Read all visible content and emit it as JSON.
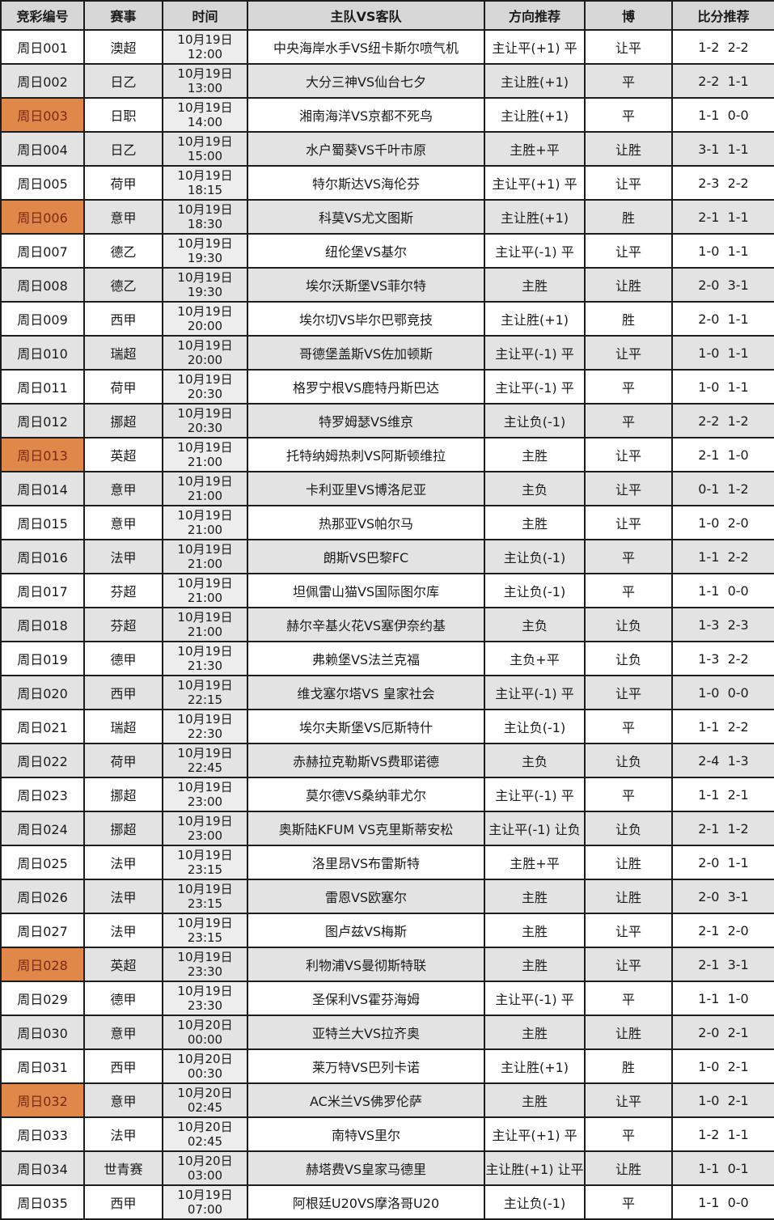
{
  "colors": {
    "highlight_bg": "#e0884a",
    "highlight_text": "#7b2812",
    "header_bg": "#d7d7d7",
    "row_alt_bg": "#e3e3e3",
    "border": "#1c1c1c"
  },
  "table": {
    "headers": [
      "竞彩编号",
      "赛事",
      "时间",
      "主队VS客队",
      "方向推荐",
      "博",
      "比分推荐"
    ],
    "rows": [
      {
        "id": "周日001",
        "league": "澳超",
        "date": "10月19日",
        "time": "12:00",
        "match": "中央海岸水手VS纽卡斯尔喷气机",
        "direction": "主让平(+1) 平",
        "bet": "让平",
        "score": "1-2  2-2",
        "highlight": false
      },
      {
        "id": "周日002",
        "league": "日乙",
        "date": "10月19日",
        "time": "13:00",
        "match": "大分三神VS仙台七夕",
        "direction": "主让胜(+1)",
        "bet": "平",
        "score": "2-2  1-1",
        "highlight": false
      },
      {
        "id": "周日003",
        "league": "日职",
        "date": "10月19日",
        "time": "14:00",
        "match": "湘南海洋VS京都不死鸟",
        "direction": "主让胜(+1)",
        "bet": "平",
        "score": "1-1  0-0",
        "highlight": true
      },
      {
        "id": "周日004",
        "league": "日乙",
        "date": "10月19日",
        "time": "15:00",
        "match": "水户蜀葵VS千叶市原",
        "direction": "主胜+平",
        "bet": "让胜",
        "score": "3-1  1-1",
        "highlight": false
      },
      {
        "id": "周日005",
        "league": "荷甲",
        "date": "10月19日",
        "time": "18:15",
        "match": "特尔斯达VS海伦芬",
        "direction": "主让平(+1) 平",
        "bet": "让平",
        "score": "2-3  2-2",
        "highlight": false
      },
      {
        "id": "周日006",
        "league": "意甲",
        "date": "10月19日",
        "time": "18:30",
        "match": "科莫VS尤文图斯",
        "direction": "主让胜(+1)",
        "bet": "胜",
        "score": "2-1  1-1",
        "highlight": true
      },
      {
        "id": "周日007",
        "league": "德乙",
        "date": "10月19日",
        "time": "19:30",
        "match": "纽伦堡VS基尔",
        "direction": "主让平(-1) 平",
        "bet": "让平",
        "score": "1-0  1-1",
        "highlight": false
      },
      {
        "id": "周日008",
        "league": "德乙",
        "date": "10月19日",
        "time": "19:30",
        "match": "埃尔沃斯堡VS菲尔特",
        "direction": "主胜",
        "bet": "让胜",
        "score": "2-0  3-1",
        "highlight": false
      },
      {
        "id": "周日009",
        "league": "西甲",
        "date": "10月19日",
        "time": "20:00",
        "match": "埃尔切VS毕尔巴鄂竞技",
        "direction": "主让胜(+1)",
        "bet": "胜",
        "score": "2-0  1-1",
        "highlight": false
      },
      {
        "id": "周日010",
        "league": "瑞超",
        "date": "10月19日",
        "time": "20:00",
        "match": "哥德堡盖斯VS佐加顿斯",
        "direction": "主让平(-1) 平",
        "bet": "让平",
        "score": "1-0  1-1",
        "highlight": false
      },
      {
        "id": "周日011",
        "league": "荷甲",
        "date": "10月19日",
        "time": "20:30",
        "match": "格罗宁根VS鹿特丹斯巴达",
        "direction": "主让平(-1) 平",
        "bet": "平",
        "score": "1-0  1-1",
        "highlight": false
      },
      {
        "id": "周日012",
        "league": "挪超",
        "date": "10月19日",
        "time": "20:30",
        "match": "特罗姆瑟VS维京",
        "direction": "主让负(-1)",
        "bet": "平",
        "score": "2-2  1-2",
        "highlight": false
      },
      {
        "id": "周日013",
        "league": "英超",
        "date": "10月19日",
        "time": "21:00",
        "match": "托特纳姆热刺VS阿斯顿维拉",
        "direction": "主胜",
        "bet": "让平",
        "score": "2-1  1-0",
        "highlight": true
      },
      {
        "id": "周日014",
        "league": "意甲",
        "date": "10月19日",
        "time": "21:00",
        "match": "卡利亚里VS博洛尼亚",
        "direction": "主负",
        "bet": "让平",
        "score": "0-1  1-2",
        "highlight": false
      },
      {
        "id": "周日015",
        "league": "意甲",
        "date": "10月19日",
        "time": "21:00",
        "match": "热那亚VS帕尔马",
        "direction": "主胜",
        "bet": "让平",
        "score": "1-0  2-0",
        "highlight": false
      },
      {
        "id": "周日016",
        "league": "法甲",
        "date": "10月19日",
        "time": "21:00",
        "match": "朗斯VS巴黎FC",
        "direction": "主让负(-1)",
        "bet": "平",
        "score": "1-1  2-2",
        "highlight": false
      },
      {
        "id": "周日017",
        "league": "芬超",
        "date": "10月19日",
        "time": "21:00",
        "match": "坦佩雷山猫VS国际图尔库",
        "direction": "主让负(-1)",
        "bet": "平",
        "score": "1-1  0-0",
        "highlight": false
      },
      {
        "id": "周日018",
        "league": "芬超",
        "date": "10月19日",
        "time": "21:00",
        "match": "赫尔辛基火花VS塞伊奈约基",
        "direction": "主负",
        "bet": "让负",
        "score": "1-3  2-3",
        "highlight": false
      },
      {
        "id": "周日019",
        "league": "德甲",
        "date": "10月19日",
        "time": "21:30",
        "match": "弗赖堡VS法兰克福",
        "direction": "主负+平",
        "bet": "让负",
        "score": "1-3  2-2",
        "highlight": false
      },
      {
        "id": "周日020",
        "league": "西甲",
        "date": "10月19日",
        "time": "22:15",
        "match": "维戈塞尔塔VS 皇家社会",
        "direction": "主让平(-1) 平",
        "bet": "让平",
        "score": "1-0  0-0",
        "highlight": false
      },
      {
        "id": "周日021",
        "league": "瑞超",
        "date": "10月19日",
        "time": "22:30",
        "match": "埃尔夫斯堡VS厄斯特什",
        "direction": "主让负(-1)",
        "bet": "平",
        "score": "1-1  2-2",
        "highlight": false
      },
      {
        "id": "周日022",
        "league": "荷甲",
        "date": "10月19日",
        "time": "22:45",
        "match": "赤赫拉克勒斯VS费耶诺德",
        "direction": "主负",
        "bet": "让负",
        "score": "2-4  1-3",
        "highlight": false
      },
      {
        "id": "周日023",
        "league": "挪超",
        "date": "10月19日",
        "time": "23:00",
        "match": "莫尔德VS桑纳菲尤尔",
        "direction": "主让平(-1) 平",
        "bet": "平",
        "score": "1-1  2-1",
        "highlight": false
      },
      {
        "id": "周日024",
        "league": "挪超",
        "date": "10月19日",
        "time": "23:00",
        "match": "奥斯陆KFUM VS克里斯蒂安松",
        "direction": "主让平(-1) 让负",
        "bet": "让负",
        "score": "2-1  1-2",
        "highlight": false
      },
      {
        "id": "周日025",
        "league": "法甲",
        "date": "10月19日",
        "time": "23:15",
        "match": "洛里昂VS布雷斯特",
        "direction": "主胜+平",
        "bet": "让胜",
        "score": "2-0  1-1",
        "highlight": false
      },
      {
        "id": "周日026",
        "league": "法甲",
        "date": "10月19日",
        "time": "23:15",
        "match": "雷恩VS欧塞尔",
        "direction": "主胜",
        "bet": "让胜",
        "score": "2-0  3-1",
        "highlight": false
      },
      {
        "id": "周日027",
        "league": "法甲",
        "date": "10月19日",
        "time": "23:15",
        "match": "图卢兹VS梅斯",
        "direction": "主胜",
        "bet": "让平",
        "score": "2-1  2-0",
        "highlight": false
      },
      {
        "id": "周日028",
        "league": "英超",
        "date": "10月19日",
        "time": "23:30",
        "match": "利物浦VS曼彻斯特联",
        "direction": "主胜",
        "bet": "让平",
        "score": "2-1  3-1",
        "highlight": true
      },
      {
        "id": "周日029",
        "league": "德甲",
        "date": "10月19日",
        "time": "23:30",
        "match": "圣保利VS霍芬海姆",
        "direction": "主让平(-1) 平",
        "bet": "平",
        "score": "1-1  1-0",
        "highlight": false
      },
      {
        "id": "周日030",
        "league": "意甲",
        "date": "10月20日",
        "time": "00:00",
        "match": "亚特兰大VS拉齐奥",
        "direction": "主胜",
        "bet": "让胜",
        "score": "2-0  2-1",
        "highlight": false
      },
      {
        "id": "周日031",
        "league": "西甲",
        "date": "10月20日",
        "time": "00:30",
        "match": "莱万特VS巴列卡诺",
        "direction": "主让胜(+1)",
        "bet": "胜",
        "score": "1-0  2-1",
        "highlight": false
      },
      {
        "id": "周日032",
        "league": "意甲",
        "date": "10月20日",
        "time": "02:45",
        "match": "AC米兰VS佛罗伦萨",
        "direction": "主胜",
        "bet": "让平",
        "score": "1-0  2-1",
        "highlight": true
      },
      {
        "id": "周日033",
        "league": "法甲",
        "date": "10月20日",
        "time": "02:45",
        "match": "南特VS里尔",
        "direction": "主让平(+1) 平",
        "bet": "平",
        "score": "1-2  1-1",
        "highlight": false
      },
      {
        "id": "周日034",
        "league": "世青赛",
        "date": "10月20日",
        "time": "03:00",
        "match": "赫塔费VS皇家马德里",
        "direction": "主让胜(+1) 让平",
        "bet": "让胜",
        "score": "1-1  0-1",
        "highlight": false
      },
      {
        "id": "周日035",
        "league": "西甲",
        "date": "10月19日",
        "time": "07:00",
        "match": "阿根廷U20VS摩洛哥U20",
        "direction": "主让负(-1)",
        "bet": "平",
        "score": "1-1  0-0",
        "highlight": false
      }
    ]
  }
}
